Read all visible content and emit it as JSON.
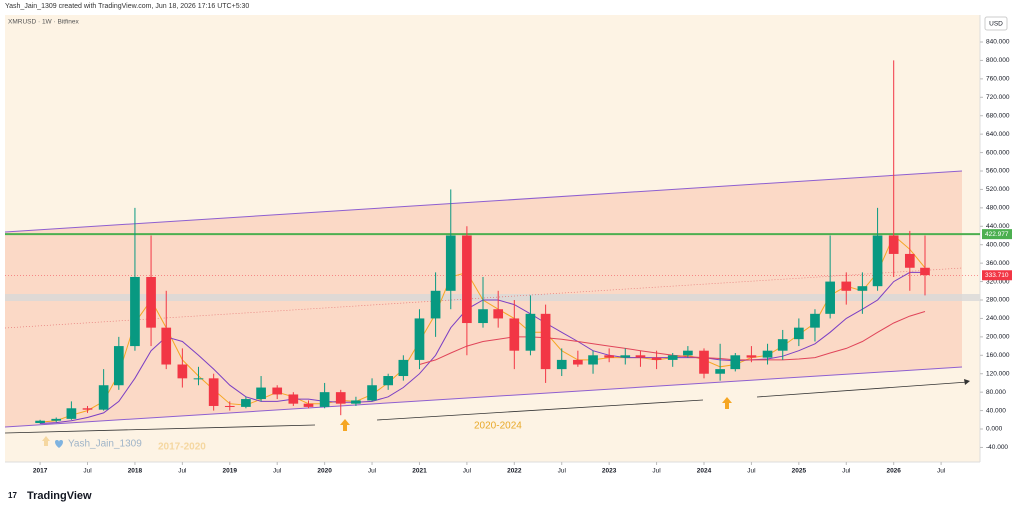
{
  "chart_data": {
    "type": "candlestick",
    "header": "Yash_Jain_1309 created with TradingView.com, Jun 18, 2026 17:16 UTC+5:30",
    "subtitle": "XMRUSD · 1W · Bitfinex",
    "currency": "USD",
    "brand": "TradingView",
    "annotations": [
      "Yash_Jain_1309",
      "2017-2020",
      "2020-2024"
    ],
    "x": [
      2017,
      2017.17,
      2017.33,
      2017.5,
      2017.67,
      2017.83,
      2018,
      2018.17,
      2018.33,
      2018.5,
      2018.67,
      2018.83,
      2019,
      2019.17,
      2019.33,
      2019.5,
      2019.67,
      2019.83,
      2020,
      2020.17,
      2020.33,
      2020.5,
      2020.67,
      2020.83,
      2021,
      2021.17,
      2021.33,
      2021.5,
      2021.67,
      2021.83,
      2022,
      2022.17,
      2022.33,
      2022.5,
      2022.67,
      2022.83,
      2023,
      2023.17,
      2023.33,
      2023.5,
      2023.67,
      2023.83,
      2024,
      2024.17,
      2024.33,
      2024.5,
      2024.67,
      2024.83,
      2025,
      2025.17,
      2025.33,
      2025.5,
      2025.67,
      2025.83,
      2026,
      2026.17,
      2026.33
    ],
    "open": [
      13,
      18,
      22,
      45,
      42,
      95,
      180,
      330,
      220,
      140,
      110,
      110,
      50,
      48,
      65,
      90,
      75,
      55,
      48,
      80,
      55,
      62,
      95,
      115,
      150,
      240,
      300,
      420,
      230,
      260,
      240,
      170,
      250,
      130,
      150,
      140,
      160,
      155,
      160,
      155,
      150,
      160,
      170,
      120,
      130,
      160,
      155,
      170,
      195,
      220,
      250,
      320,
      300,
      310,
      420,
      380,
      350
    ],
    "high": [
      20,
      25,
      60,
      50,
      130,
      200,
      480,
      420,
      300,
      175,
      135,
      120,
      60,
      70,
      115,
      95,
      80,
      62,
      100,
      85,
      70,
      110,
      120,
      160,
      260,
      340,
      520,
      440,
      330,
      300,
      280,
      290,
      270,
      175,
      170,
      170,
      175,
      175,
      170,
      170,
      165,
      180,
      175,
      185,
      165,
      180,
      185,
      215,
      240,
      260,
      420,
      340,
      340,
      480,
      800,
      430,
      420
    ],
    "low": [
      12,
      15,
      20,
      35,
      40,
      85,
      170,
      180,
      130,
      90,
      95,
      40,
      40,
      45,
      60,
      65,
      50,
      45,
      45,
      30,
      50,
      60,
      85,
      105,
      130,
      200,
      260,
      160,
      220,
      220,
      130,
      160,
      100,
      115,
      135,
      120,
      145,
      140,
      135,
      130,
      135,
      155,
      110,
      105,
      125,
      145,
      140,
      150,
      180,
      190,
      240,
      270,
      250,
      300,
      330,
      300,
      290
    ],
    "close": [
      18,
      22,
      45,
      42,
      95,
      180,
      330,
      220,
      140,
      110,
      110,
      50,
      48,
      65,
      90,
      75,
      55,
      48,
      80,
      55,
      62,
      95,
      115,
      150,
      240,
      300,
      420,
      230,
      260,
      240,
      170,
      250,
      130,
      150,
      140,
      160,
      155,
      160,
      155,
      150,
      160,
      170,
      120,
      130,
      160,
      155,
      170,
      195,
      220,
      250,
      320,
      300,
      310,
      420,
      380,
      350,
      334
    ],
    "up_color": "#089981",
    "down_color": "#f23645",
    "series": [
      {
        "color": "#f5a623",
        "values": [
          15,
          18,
          30,
          40,
          60,
          120,
          230,
          280,
          220,
          150,
          115,
          85,
          55,
          52,
          65,
          80,
          70,
          55,
          55,
          62,
          60,
          75,
          100,
          130,
          190,
          250,
          330,
          340,
          280,
          260,
          240,
          210,
          210,
          170,
          150,
          150,
          155,
          155,
          155,
          150,
          155,
          160,
          150,
          135,
          140,
          155,
          160,
          180,
          205,
          230,
          290,
          310,
          300,
          340,
          420,
          390,
          350
        ]
      },
      {
        "color": "#7b3fc4",
        "values": [
          12,
          14,
          18,
          25,
          35,
          60,
          110,
          170,
          200,
          190,
          160,
          130,
          95,
          70,
          60,
          60,
          65,
          65,
          60,
          58,
          58,
          60,
          70,
          90,
          120,
          160,
          220,
          260,
          280,
          280,
          270,
          250,
          230,
          210,
          190,
          170,
          160,
          155,
          155,
          155,
          155,
          155,
          155,
          150,
          148,
          150,
          152,
          158,
          170,
          185,
          210,
          240,
          260,
          280,
          320,
          340,
          340
        ]
      },
      {
        "color": "#e0455a",
        "values": [
          null,
          null,
          null,
          null,
          null,
          null,
          null,
          null,
          null,
          null,
          null,
          null,
          null,
          null,
          null,
          null,
          null,
          null,
          null,
          null,
          null,
          null,
          null,
          null,
          140,
          150,
          165,
          180,
          190,
          195,
          200,
          200,
          198,
          195,
          190,
          185,
          180,
          175,
          170,
          165,
          160,
          157,
          155,
          153,
          150,
          150,
          150,
          150,
          152,
          155,
          165,
          175,
          190,
          210,
          230,
          245,
          255
        ]
      }
    ],
    "price_lines": [
      {
        "value": 422.977,
        "label": "422.977",
        "color": "#4caf50"
      },
      {
        "value": 333.71,
        "label": "333.710",
        "color": "#f23645"
      }
    ],
    "xlim": [
      2016.63,
      2026.91
    ],
    "ylim": [
      -71.6,
      898.6
    ],
    "xticks": [
      2017,
      {
        "value": 2017.5,
        "label": "Jul"
      },
      2018,
      {
        "value": 2018.5,
        "label": "Jul"
      },
      2019,
      {
        "value": 2019.5,
        "label": "Jul"
      },
      2020,
      {
        "value": 2020.5,
        "label": "Jul"
      },
      2021,
      {
        "value": 2021.5,
        "label": "Jul"
      },
      2022,
      {
        "value": 2022.5,
        "label": "Jul"
      },
      2023,
      {
        "value": 2023.5,
        "label": "Jul"
      },
      2024,
      {
        "value": 2024.5,
        "label": "Jul"
      },
      2025,
      {
        "value": 2025.5,
        "label": "Jul"
      },
      2026,
      {
        "value": 2026.5,
        "label": "Jul"
      }
    ],
    "yticks": [
      {
        "value": -40,
        "label": "-40.000"
      },
      {
        "value": 0,
        "label": "0.000"
      },
      {
        "value": 40,
        "label": "40.000"
      },
      {
        "value": 80,
        "label": "80.000"
      },
      {
        "value": 120,
        "label": "120.000"
      },
      {
        "value": 160,
        "label": "160.000"
      },
      {
        "value": 200,
        "label": "200.000"
      },
      {
        "value": 240,
        "label": "240.000"
      },
      {
        "value": 280,
        "label": "280.000"
      },
      {
        "value": 320,
        "label": "320.000"
      },
      {
        "value": 360,
        "label": "360.000"
      },
      {
        "value": 400,
        "label": "400.000"
      },
      {
        "value": 440,
        "label": "440.000"
      },
      {
        "value": 480,
        "label": "480.000"
      },
      {
        "value": 520,
        "label": "520.000"
      },
      {
        "value": 560,
        "label": "560.000"
      },
      {
        "value": 600,
        "label": "600.000"
      },
      {
        "value": 640,
        "label": "640.000"
      },
      {
        "value": 680,
        "label": "680.000"
      },
      {
        "value": 720,
        "label": "720.000"
      },
      {
        "value": 760,
        "label": "760.000"
      },
      {
        "value": 800,
        "label": "800.000"
      },
      {
        "value": 840,
        "label": "840.000"
      }
    ],
    "grid": false
  }
}
